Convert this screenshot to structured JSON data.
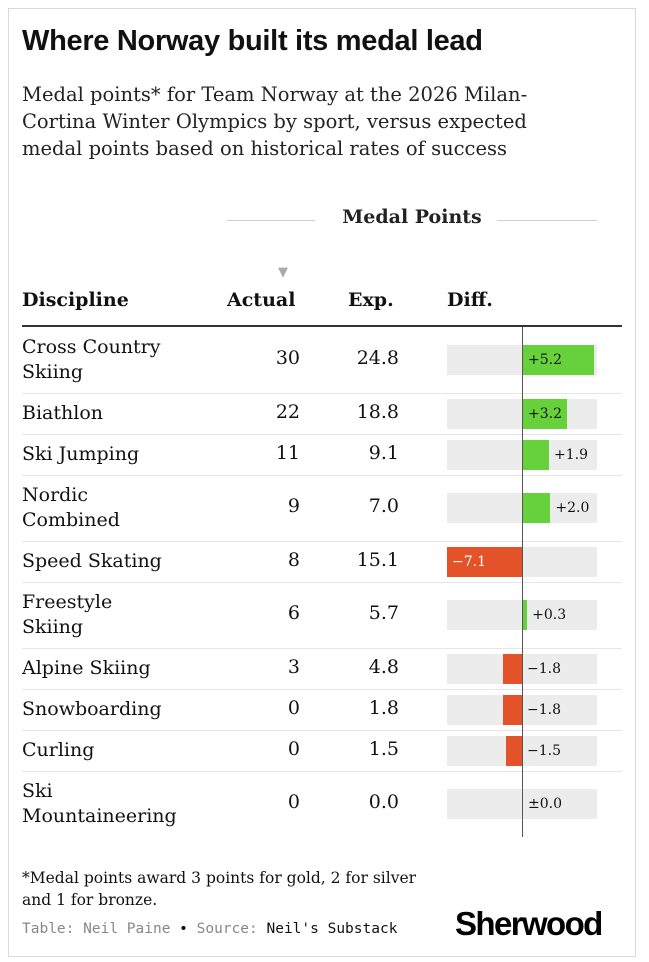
{
  "title": "Where Norway built its medal lead",
  "subtitle": "Medal points* for Team Norway at the 2026 Milan-Cortina Winter Olympics by sport, versus expected medal points based on historical rates of success",
  "group_header": "Medal Points",
  "sort_indicator": "▼",
  "columns": {
    "discipline": "Discipline",
    "actual": "Actual",
    "expected": "Exp.",
    "diff": "Diff."
  },
  "chart_data": {
    "type": "table",
    "columns": [
      "Discipline",
      "Actual",
      "Exp.",
      "Diff."
    ],
    "diff_range": [
      -7.1,
      5.2
    ],
    "rows": [
      {
        "discipline": "Cross Country Skiing",
        "actual": "30",
        "expected": "24.8",
        "diff": 5.2,
        "diff_label": "+5.2"
      },
      {
        "discipline": "Biathlon",
        "actual": "22",
        "expected": "18.8",
        "diff": 3.2,
        "diff_label": "+3.2"
      },
      {
        "discipline": "Ski Jumping",
        "actual": "11",
        "expected": "9.1",
        "diff": 1.9,
        "diff_label": "+1.9"
      },
      {
        "discipline": "Nordic Combined",
        "actual": "9",
        "expected": "7.0",
        "diff": 2.0,
        "diff_label": "+2.0"
      },
      {
        "discipline": "Speed Skating",
        "actual": "8",
        "expected": "15.1",
        "diff": -7.1,
        "diff_label": "−7.1"
      },
      {
        "discipline": "Freestyle Skiing",
        "actual": "6",
        "expected": "5.7",
        "diff": 0.3,
        "diff_label": "+0.3"
      },
      {
        "discipline": "Alpine Skiing",
        "actual": "3",
        "expected": "4.8",
        "diff": -1.8,
        "diff_label": "−1.8"
      },
      {
        "discipline": "Snowboarding",
        "actual": "0",
        "expected": "1.8",
        "diff": -1.8,
        "diff_label": "−1.8"
      },
      {
        "discipline": "Curling",
        "actual": "0",
        "expected": "1.5",
        "diff": -1.5,
        "diff_label": "−1.5"
      },
      {
        "discipline": "Ski Mountaineering",
        "actual": "0",
        "expected": "0.0",
        "diff": 0.0,
        "diff_label": "±0.0"
      }
    ]
  },
  "colors": {
    "positive": "#66d13a",
    "negative": "#e4522a",
    "track": "#ececec"
  },
  "footnote": "*Medal points award 3 points for gold, 2 for silver and 1 for bronze.",
  "credit": {
    "table_label": "Table:",
    "table_value": "Neil Paine",
    "bullet": "•",
    "source_label": "Source:",
    "source_value": "Neil's Substack"
  },
  "logo": "Sherwood"
}
